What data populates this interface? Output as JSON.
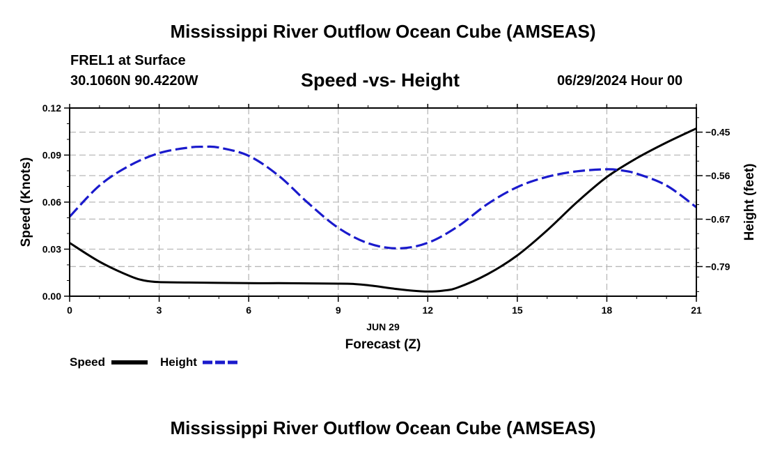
{
  "header": {
    "main_title": "Mississippi River Outflow Ocean Cube (AMSEAS)",
    "station": "FREL1 at Surface",
    "coords": "30.1060N  90.4220W",
    "chart_title": "Speed -vs- Height",
    "datetime": "06/29/2024 Hour 00",
    "bottom_title": "Mississippi River Outflow Ocean Cube (AMSEAS)"
  },
  "chart_data": {
    "type": "line",
    "title": "Speed -vs- Height",
    "xlabel": "Forecast (Z)",
    "date_label": "JUN 29",
    "xlim": [
      0,
      21
    ],
    "x_ticks": [
      0,
      3,
      6,
      9,
      12,
      15,
      18,
      21
    ],
    "x_tick_labels": [
      "0",
      "3",
      "6",
      "9",
      "12",
      "15",
      "18",
      "21"
    ],
    "left_axis": {
      "label": "Speed (Knots)",
      "ylim": [
        0,
        0.12
      ],
      "ticks": [
        0,
        0.03,
        0.06,
        0.09,
        0.12
      ],
      "tick_labels": [
        "0.00",
        "0.03",
        "0.06",
        "0.09",
        "0.12"
      ]
    },
    "right_axis": {
      "label": "Height (feet)",
      "ylim": [
        -0.865,
        -0.389
      ],
      "ticks": [
        -0.45,
        -0.56,
        -0.67,
        -0.79
      ],
      "tick_labels": [
        "−0.45",
        "−0.56",
        "−0.67",
        "−0.79"
      ]
    },
    "grid": true,
    "legend_position": "bottom-left",
    "series": [
      {
        "name": "Speed",
        "axis": "left",
        "color": "#000000",
        "style": "solid",
        "x": [
          0,
          1,
          2,
          2.5,
          3,
          4,
          5,
          6,
          7,
          8,
          9,
          9.5,
          10,
          11,
          11.5,
          12,
          12.5,
          13,
          14,
          15,
          16,
          17,
          18,
          19,
          20,
          21
        ],
        "values": [
          0.034,
          0.022,
          0.013,
          0.01,
          0.009,
          0.0087,
          0.0085,
          0.0083,
          0.0083,
          0.0082,
          0.008,
          0.0078,
          0.007,
          0.0045,
          0.0035,
          0.003,
          0.0035,
          0.0055,
          0.014,
          0.026,
          0.042,
          0.06,
          0.076,
          0.088,
          0.098,
          0.107
        ]
      },
      {
        "name": "Height",
        "axis": "right",
        "color": "#1a1acc",
        "style": "dashed",
        "x": [
          0,
          1,
          2,
          3,
          4,
          4.5,
          5,
          6,
          7,
          8,
          9,
          10,
          11,
          12,
          13,
          14,
          15,
          16,
          17,
          18,
          18.5,
          19,
          20,
          21
        ],
        "values": [
          -0.664,
          -0.585,
          -0.535,
          -0.503,
          -0.489,
          -0.487,
          -0.489,
          -0.51,
          -0.56,
          -0.63,
          -0.692,
          -0.731,
          -0.744,
          -0.73,
          -0.689,
          -0.632,
          -0.589,
          -0.563,
          -0.549,
          -0.544,
          -0.547,
          -0.555,
          -0.585,
          -0.64
        ]
      }
    ]
  }
}
